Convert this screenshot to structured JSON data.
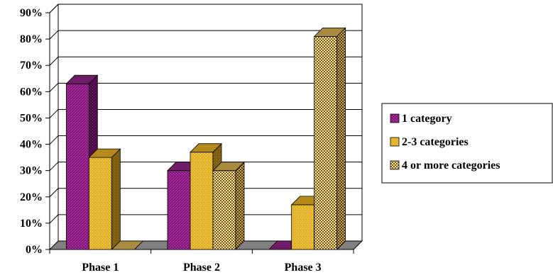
{
  "chart_data": {
    "type": "bar",
    "categories": [
      "Phase 1",
      "Phase 2",
      "Phase 3"
    ],
    "series": [
      {
        "name": "1 category",
        "values": [
          63,
          30,
          0
        ],
        "color": "#8b1a82",
        "pattern": "dots"
      },
      {
        "name": "2-3 categories",
        "values": [
          35,
          37,
          17
        ],
        "color": "#e2b22a",
        "pattern": "hatch"
      },
      {
        "name": "4 or more categories",
        "values": [
          0,
          30,
          81
        ],
        "color": "#8a6a1e",
        "pattern": "checker"
      }
    ],
    "ylim": [
      0,
      90
    ],
    "yticks": [
      "0%",
      "10%",
      "20%",
      "30%",
      "40%",
      "50%",
      "60%",
      "70%",
      "80%",
      "90%"
    ],
    "grid": true,
    "legend_position": "right",
    "style": "3d"
  }
}
